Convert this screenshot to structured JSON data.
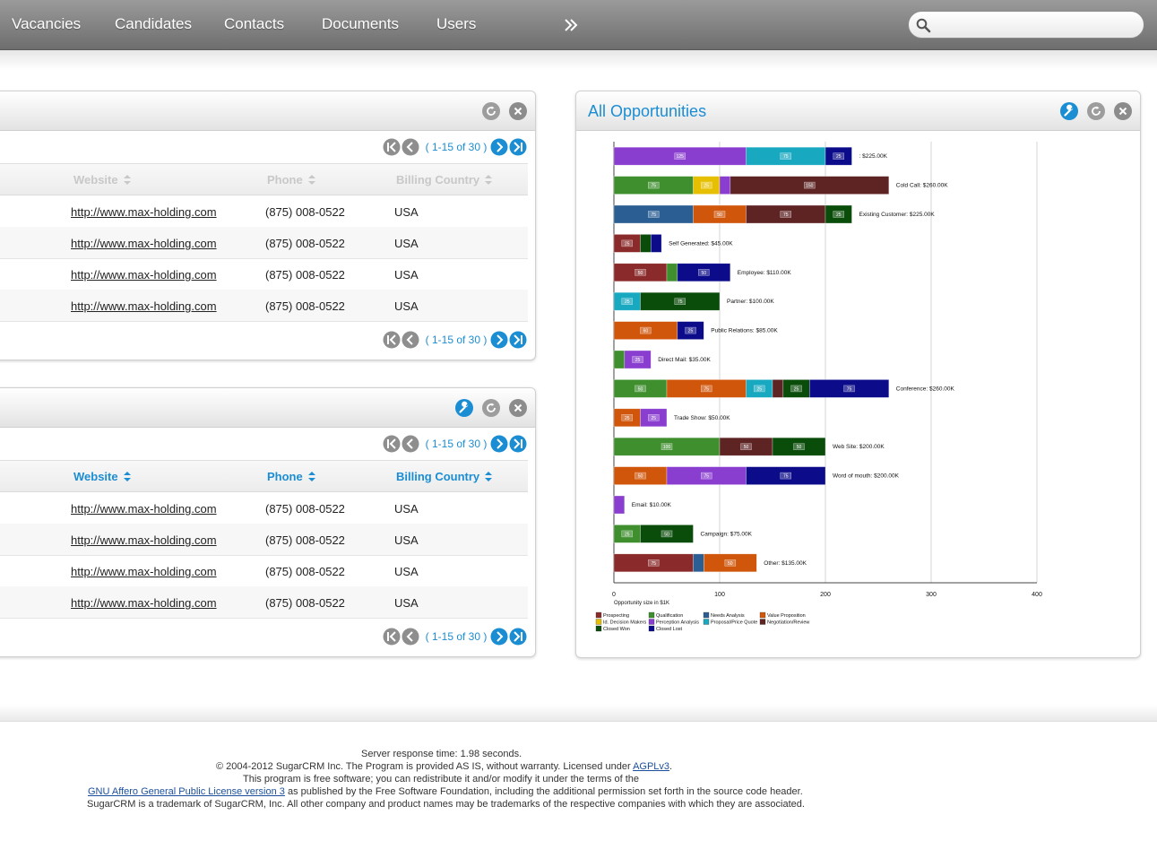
{
  "nav": {
    "items": [
      "Vacancies",
      "Candidates",
      "Contacts",
      "Documents",
      "Users"
    ],
    "more_icon": "double-chevron-right-icon",
    "search": {
      "value": "",
      "placeholder": "",
      "icon": "search-icon"
    }
  },
  "colors": {
    "accent": "#1b8dd3",
    "nav_bg": "#808080"
  },
  "accounts_dashlet_1": {
    "title": "",
    "pager": "( 1-15 of 30 )",
    "columns": [
      "Website",
      "Phone",
      "Billing Country"
    ],
    "rows": [
      {
        "website": "http://www.max-holding.com",
        "phone": "(875) 008-0522",
        "country": "USA"
      },
      {
        "website": "http://www.max-holding.com",
        "phone": "(875) 008-0522",
        "country": "USA"
      },
      {
        "website": "http://www.max-holding.com",
        "phone": "(875) 008-0522",
        "country": "USA"
      },
      {
        "website": "http://www.max-holding.com",
        "phone": "(875) 008-0522",
        "country": "USA"
      }
    ]
  },
  "accounts_dashlet_2": {
    "title": "",
    "pager": "( 1-15 of 30 )",
    "columns": [
      "Website",
      "Phone",
      "Billing Country"
    ],
    "rows": [
      {
        "website": "http://www.max-holding.com",
        "phone": "(875) 008-0522",
        "country": "USA"
      },
      {
        "website": "http://www.max-holding.com",
        "phone": "(875) 008-0522",
        "country": "USA"
      },
      {
        "website": "http://www.max-holding.com",
        "phone": "(875) 008-0522",
        "country": "USA"
      },
      {
        "website": "http://www.max-holding.com",
        "phone": "(875) 008-0522",
        "country": "USA"
      }
    ]
  },
  "opportunities_dashlet": {
    "title": "All Opportunities"
  },
  "chart_data": {
    "type": "bar",
    "orientation": "horizontal",
    "stacked": true,
    "xlabel": "Opportunity size in $1K",
    "xlim": [
      0,
      400
    ],
    "xticks": [
      0,
      100,
      200,
      300,
      400
    ],
    "grid": true,
    "legend_position": "bottom-left",
    "stage_colors": {
      "Prospecting": "#8b2a2a",
      "Qualification": "#3f8f2f",
      "Needs Analysis": "#2b5f93",
      "Value Proposition": "#d0560c",
      "Id. Decision Makers": "#e6c000",
      "Perception Analysis": "#8a3ed0",
      "Proposal/Price Quote": "#18a9c1",
      "Negotiation/Review": "#5e2323",
      "Closed Won": "#0a4d0a",
      "Closed Lost": "#0c0c8a"
    },
    "legend": [
      "Prospecting",
      "Qualification",
      "Needs Analysis",
      "Value Proposition",
      "Id. Decision Makers",
      "Perception Analysis",
      "Proposal/Price Quote",
      "Negotiation/Review",
      "Closed Won",
      "Closed Lost"
    ],
    "categories": [
      {
        "label": ": $225.00K",
        "segments": [
          {
            "stage": "Perception Analysis",
            "value": 125
          },
          {
            "stage": "Proposal/Price Quote",
            "value": 75
          },
          {
            "stage": "Closed Lost",
            "value": 25
          }
        ]
      },
      {
        "label": "Cold Call: $260.00K",
        "segments": [
          {
            "stage": "Qualification",
            "value": 75
          },
          {
            "stage": "Id. Decision Makers",
            "value": 25
          },
          {
            "stage": "Perception Analysis",
            "value": 10
          },
          {
            "stage": "Negotiation/Review",
            "value": 150
          }
        ]
      },
      {
        "label": "Existing Customer: $225.00K",
        "segments": [
          {
            "stage": "Needs Analysis",
            "value": 75
          },
          {
            "stage": "Value Proposition",
            "value": 50
          },
          {
            "stage": "Negotiation/Review",
            "value": 75
          },
          {
            "stage": "Closed Won",
            "value": 25
          }
        ]
      },
      {
        "label": "Self Generated: $45.00K",
        "segments": [
          {
            "stage": "Prospecting",
            "value": 25
          },
          {
            "stage": "Closed Won",
            "value": 10
          },
          {
            "stage": "Closed Lost",
            "value": 10
          }
        ]
      },
      {
        "label": "Employee: $110.00K",
        "segments": [
          {
            "stage": "Prospecting",
            "value": 50
          },
          {
            "stage": "Qualification",
            "value": 10
          },
          {
            "stage": "Closed Lost",
            "value": 50
          }
        ]
      },
      {
        "label": "Partner: $100.00K",
        "segments": [
          {
            "stage": "Proposal/Price Quote",
            "value": 25
          },
          {
            "stage": "Closed Won",
            "value": 75
          }
        ]
      },
      {
        "label": "Public Relations: $85.00K",
        "segments": [
          {
            "stage": "Value Proposition",
            "value": 60
          },
          {
            "stage": "Closed Lost",
            "value": 25
          }
        ]
      },
      {
        "label": "Direct Mail: $35.00K",
        "segments": [
          {
            "stage": "Qualification",
            "value": 10
          },
          {
            "stage": "Perception Analysis",
            "value": 25
          }
        ]
      },
      {
        "label": "Conference: $260.00K",
        "segments": [
          {
            "stage": "Qualification",
            "value": 50
          },
          {
            "stage": "Value Proposition",
            "value": 75
          },
          {
            "stage": "Proposal/Price Quote",
            "value": 25
          },
          {
            "stage": "Negotiation/Review",
            "value": 10
          },
          {
            "stage": "Closed Won",
            "value": 25
          },
          {
            "stage": "Closed Lost",
            "value": 75
          }
        ]
      },
      {
        "label": "Trade Show: $50.00K",
        "segments": [
          {
            "stage": "Value Proposition",
            "value": 25
          },
          {
            "stage": "Perception Analysis",
            "value": 25
          }
        ]
      },
      {
        "label": "Web Site: $200.00K",
        "segments": [
          {
            "stage": "Qualification",
            "value": 100
          },
          {
            "stage": "Negotiation/Review",
            "value": 50
          },
          {
            "stage": "Closed Won",
            "value": 50
          }
        ]
      },
      {
        "label": "Word of mouth: $200.00K",
        "segments": [
          {
            "stage": "Value Proposition",
            "value": 50
          },
          {
            "stage": "Perception Analysis",
            "value": 75
          },
          {
            "stage": "Closed Lost",
            "value": 75
          }
        ]
      },
      {
        "label": "Email: $10.00K",
        "segments": [
          {
            "stage": "Perception Analysis",
            "value": 10
          }
        ]
      },
      {
        "label": "Campaign: $75.00K",
        "segments": [
          {
            "stage": "Qualification",
            "value": 25
          },
          {
            "stage": "Closed Won",
            "value": 50
          }
        ]
      },
      {
        "label": "Other: $135.00K",
        "segments": [
          {
            "stage": "Prospecting",
            "value": 75
          },
          {
            "stage": "Needs Analysis",
            "value": 10
          },
          {
            "stage": "Value Proposition",
            "value": 50
          }
        ]
      }
    ]
  },
  "footer": {
    "response_time": "Server response time: 1.98 seconds.",
    "copyright": "© 2004-2012 SugarCRM Inc. The Program is provided AS IS, without warranty. Licensed under ",
    "agpl_link": "AGPLv3",
    "copyright_end": ".",
    "free_software": "This program is free software; you can redistribute it and/or modify it under the terms of the",
    "gnu_link": "GNU Affero General Public License version 3",
    "gnu_rest": " as published by the Free Software Foundation, including the additional permission set forth in the source code header.",
    "trademark": "SugarCRM is a trademark of SugarCRM, Inc. All other company and product names may be trademarks of the respective companies with which they are associated."
  }
}
